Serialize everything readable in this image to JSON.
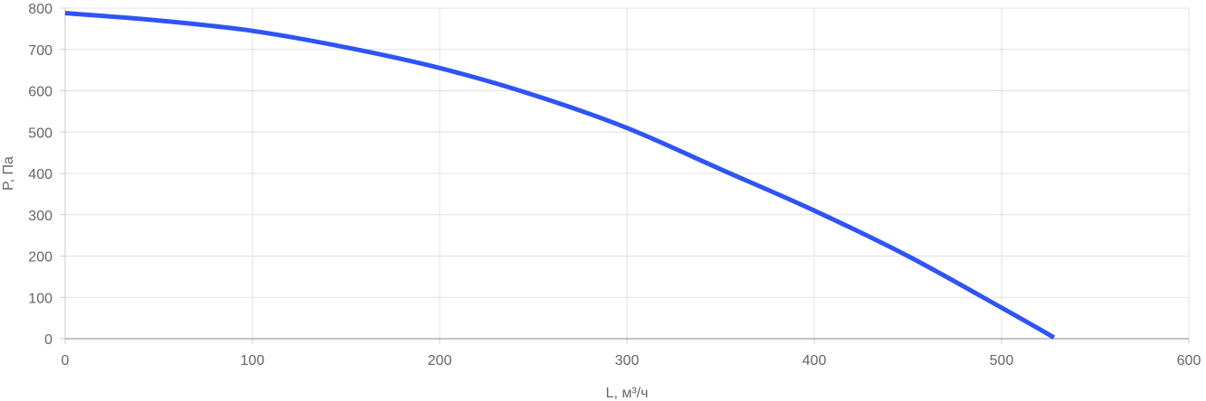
{
  "chart_data": {
    "type": "line",
    "xlabel": "L, м³/ч",
    "ylabel": "P, Па",
    "xlim": [
      0,
      600
    ],
    "ylim": [
      0,
      800
    ],
    "x_ticks": [
      0,
      100,
      200,
      300,
      400,
      500,
      600
    ],
    "y_ticks": [
      0,
      100,
      200,
      300,
      400,
      500,
      600,
      700,
      800
    ],
    "grid": true,
    "series": [
      {
        "color": "#2f54f5",
        "x": [
          0,
          50,
          100,
          150,
          200,
          250,
          300,
          350,
          400,
          450,
          500,
          528
        ],
        "y": [
          788,
          770,
          745,
          705,
          655,
          590,
          510,
          410,
          310,
          200,
          75,
          3
        ]
      }
    ]
  }
}
